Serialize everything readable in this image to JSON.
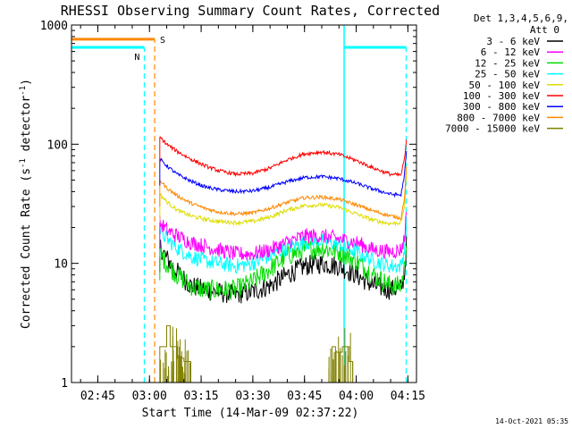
{
  "chart_data": {
    "type": "line",
    "title": "RHESSI Observing Summary Count Rates, Corrected",
    "xlabel": "Start Time (14-Mar-09 02:37:22)",
    "ylabel": "Corrected Count Rate (s⁻¹ detector⁻¹)",
    "ylabel_main": "Corrected Count Rate (s",
    "ylabel_sup1": "-1",
    "ylabel_mid": " detector",
    "ylabel_sup2": "-1",
    "ylabel_end": ")",
    "yscale": "log",
    "ylim": [
      1,
      1000
    ],
    "xlim": [
      "02:37:22",
      "04:17:30"
    ],
    "x_ticks": [
      "02:45",
      "03:00",
      "03:15",
      "03:30",
      "03:45",
      "04:00",
      "04:15"
    ],
    "y_ticks": [
      "1",
      "10",
      "100",
      "1000"
    ],
    "timestamp": "14-Oct-2021 05:35",
    "legend": {
      "position": "top-right",
      "header_line1": "Det 1,3,4,5,6,9,",
      "header_line2": "Att 0",
      "entries": [
        {
          "label": "3 - 6 keV",
          "color": "#000000"
        },
        {
          "label": "6 - 12 keV",
          "color": "#ff00ff"
        },
        {
          "label": "12 - 25 keV",
          "color": "#00dd00"
        },
        {
          "label": "25 - 50 keV",
          "color": "#00ffff"
        },
        {
          "label": "50 - 100 keV",
          "color": "#dddd00"
        },
        {
          "label": "100 - 300 keV",
          "color": "#ff0000"
        },
        {
          "label": "300 - 800 keV",
          "color": "#0000ff"
        },
        {
          "label": "800 - 7000 keV",
          "color": "#ff8800"
        },
        {
          "label": "7000 - 15000 keV",
          "color": "#808000"
        }
      ]
    },
    "flags": [
      {
        "label": "N",
        "meaning": "night",
        "color": "#00ffff",
        "intervals": [
          [
            "02:37:22",
            "02:58:30"
          ],
          [
            "03:56:30",
            "04:14:30"
          ]
        ],
        "level": 650
      },
      {
        "label": "S",
        "meaning": "SAA",
        "color": "#ff8800",
        "intervals": [
          [
            "02:37:22",
            "03:01:30"
          ]
        ],
        "level": 760
      }
    ],
    "series": [
      {
        "name": "3 - 6 keV",
        "color": "#000000",
        "noise": 0.2,
        "points": [
          [
            "03:03:00",
            14
          ],
          [
            "03:05:00",
            11
          ],
          [
            "03:08:00",
            8.5
          ],
          [
            "03:12:00",
            6.5
          ],
          [
            "03:16:00",
            6
          ],
          [
            "03:20:00",
            5.7
          ],
          [
            "03:25:00",
            5.5
          ],
          [
            "03:30:00",
            5.8
          ],
          [
            "03:35:00",
            6.5
          ],
          [
            "03:40:00",
            8
          ],
          [
            "03:45:00",
            9.5
          ],
          [
            "03:50:00",
            10
          ],
          [
            "03:55:00",
            9.5
          ],
          [
            "04:00:00",
            8
          ],
          [
            "04:05:00",
            6.5
          ],
          [
            "04:10:00",
            6
          ],
          [
            "04:13:00",
            6.2
          ],
          [
            "04:14:00",
            8
          ],
          [
            "04:14:40",
            15
          ]
        ]
      },
      {
        "name": "6 - 12 keV",
        "color": "#ff00ff",
        "noise": 0.15,
        "points": [
          [
            "03:03:00",
            22
          ],
          [
            "03:05:00",
            19
          ],
          [
            "03:08:00",
            17
          ],
          [
            "03:12:00",
            15
          ],
          [
            "03:16:00",
            14
          ],
          [
            "03:20:00",
            13
          ],
          [
            "03:25:00",
            12
          ],
          [
            "03:30:00",
            12
          ],
          [
            "03:35:00",
            13
          ],
          [
            "03:40:00",
            15
          ],
          [
            "03:45:00",
            17
          ],
          [
            "03:50:00",
            17
          ],
          [
            "03:55:00",
            16
          ],
          [
            "04:00:00",
            15
          ],
          [
            "04:05:00",
            13
          ],
          [
            "04:10:00",
            12.5
          ],
          [
            "04:13:00",
            13
          ],
          [
            "04:14:00",
            16
          ],
          [
            "04:14:40",
            30
          ]
        ]
      },
      {
        "name": "12 - 25 keV",
        "color": "#00dd00",
        "noise": 0.2,
        "points": [
          [
            "03:03:00",
            12
          ],
          [
            "03:05:00",
            10
          ],
          [
            "03:08:00",
            8
          ],
          [
            "03:12:00",
            6.5
          ],
          [
            "03:16:00",
            6
          ],
          [
            "03:20:00",
            6
          ],
          [
            "03:25:00",
            6
          ],
          [
            "03:30:00",
            7
          ],
          [
            "03:35:00",
            9
          ],
          [
            "03:40:00",
            11.5
          ],
          [
            "03:45:00",
            13
          ],
          [
            "03:50:00",
            13.5
          ],
          [
            "03:55:00",
            12.5
          ],
          [
            "04:00:00",
            10.5
          ],
          [
            "04:05:00",
            8
          ],
          [
            "04:10:00",
            6.5
          ],
          [
            "04:13:00",
            6.5
          ],
          [
            "04:14:00",
            9
          ],
          [
            "04:14:40",
            18
          ]
        ]
      },
      {
        "name": "25 - 50 keV",
        "color": "#00ffff",
        "noise": 0.15,
        "points": [
          [
            "03:03:00",
            19
          ],
          [
            "03:05:00",
            16
          ],
          [
            "03:08:00",
            13.5
          ],
          [
            "03:12:00",
            11.5
          ],
          [
            "03:16:00",
            10.5
          ],
          [
            "03:20:00",
            10
          ],
          [
            "03:25:00",
            9.5
          ],
          [
            "03:30:00",
            10
          ],
          [
            "03:35:00",
            11.5
          ],
          [
            "03:40:00",
            13.5
          ],
          [
            "03:45:00",
            15
          ],
          [
            "03:50:00",
            15.5
          ],
          [
            "03:55:00",
            14.5
          ],
          [
            "04:00:00",
            12.5
          ],
          [
            "04:05:00",
            10.5
          ],
          [
            "04:10:00",
            9.5
          ],
          [
            "04:13:00",
            9.5
          ],
          [
            "04:14:00",
            13
          ],
          [
            "04:14:40",
            25
          ]
        ]
      },
      {
        "name": "50 - 100 keV",
        "color": "#dddd00",
        "noise": 0.04,
        "points": [
          [
            "03:03:00",
            38
          ],
          [
            "03:05:00",
            33
          ],
          [
            "03:08:00",
            28
          ],
          [
            "03:12:00",
            25
          ],
          [
            "03:16:00",
            23.5
          ],
          [
            "03:20:00",
            22.5
          ],
          [
            "03:25:00",
            22
          ],
          [
            "03:30:00",
            22.5
          ],
          [
            "03:35:00",
            24.5
          ],
          [
            "03:40:00",
            28
          ],
          [
            "03:45:00",
            30.5
          ],
          [
            "03:50:00",
            31
          ],
          [
            "03:55:00",
            29.5
          ],
          [
            "04:00:00",
            26
          ],
          [
            "04:05:00",
            23
          ],
          [
            "04:10:00",
            21.5
          ],
          [
            "04:13:00",
            22
          ],
          [
            "04:14:00",
            30
          ],
          [
            "04:14:40",
            60
          ]
        ]
      },
      {
        "name": "100 - 300 keV",
        "color": "#ff0000",
        "noise": 0.035,
        "points": [
          [
            "03:03:00",
            115
          ],
          [
            "03:05:00",
            100
          ],
          [
            "03:08:00",
            87
          ],
          [
            "03:12:00",
            75
          ],
          [
            "03:16:00",
            66
          ],
          [
            "03:20:00",
            60
          ],
          [
            "03:25:00",
            56
          ],
          [
            "03:30:00",
            57
          ],
          [
            "03:35:00",
            63
          ],
          [
            "03:40:00",
            74
          ],
          [
            "03:45:00",
            83
          ],
          [
            "03:50:00",
            86
          ],
          [
            "03:55:00",
            82
          ],
          [
            "04:00:00",
            73
          ],
          [
            "04:05:00",
            63
          ],
          [
            "04:10:00",
            56
          ],
          [
            "04:13:00",
            55
          ],
          [
            "04:14:00",
            75
          ],
          [
            "04:14:40",
            110
          ]
        ]
      },
      {
        "name": "300 - 800 keV",
        "color": "#0000ff",
        "noise": 0.035,
        "points": [
          [
            "03:03:00",
            75
          ],
          [
            "03:05:00",
            66
          ],
          [
            "03:08:00",
            56
          ],
          [
            "03:12:00",
            49
          ],
          [
            "03:16:00",
            44
          ],
          [
            "03:20:00",
            41.5
          ],
          [
            "03:25:00",
            40
          ],
          [
            "03:30:00",
            40.5
          ],
          [
            "03:35:00",
            43.5
          ],
          [
            "03:40:00",
            48.5
          ],
          [
            "03:45:00",
            52.5
          ],
          [
            "03:50:00",
            53.5
          ],
          [
            "03:55:00",
            51.5
          ],
          [
            "04:00:00",
            47
          ],
          [
            "04:05:00",
            42
          ],
          [
            "04:10:00",
            38
          ],
          [
            "04:13:00",
            37.5
          ],
          [
            "04:14:00",
            55
          ],
          [
            "04:14:40",
            90
          ]
        ]
      },
      {
        "name": "800 - 7000 keV",
        "color": "#ff8800",
        "noise": 0.035,
        "points": [
          [
            "03:03:00",
            50
          ],
          [
            "03:05:00",
            43
          ],
          [
            "03:08:00",
            37
          ],
          [
            "03:12:00",
            32
          ],
          [
            "03:16:00",
            29
          ],
          [
            "03:20:00",
            27
          ],
          [
            "03:25:00",
            26
          ],
          [
            "03:30:00",
            26.5
          ],
          [
            "03:35:00",
            29
          ],
          [
            "03:40:00",
            32.5
          ],
          [
            "03:45:00",
            35.5
          ],
          [
            "03:50:00",
            36
          ],
          [
            "03:55:00",
            34.5
          ],
          [
            "04:00:00",
            31
          ],
          [
            "04:05:00",
            27.5
          ],
          [
            "04:10:00",
            25
          ],
          [
            "04:13:00",
            24
          ],
          [
            "04:14:00",
            35
          ],
          [
            "04:14:40",
            70
          ]
        ]
      },
      {
        "name": "7000 - 15000 keV",
        "color": "#808000",
        "noise": 0,
        "points": [
          [
            "03:03:00",
            2
          ],
          [
            "03:05:00",
            3
          ],
          [
            "03:06:00",
            2
          ],
          [
            "03:08:00",
            1.6
          ],
          [
            "03:10:00",
            1.5
          ],
          [
            "03:12:00",
            1
          ],
          [
            "03:52:00",
            1
          ],
          [
            "03:53:00",
            2
          ],
          [
            "03:54:00",
            1.8
          ],
          [
            "03:56:00",
            2
          ],
          [
            "03:58:00",
            1.5
          ],
          [
            "03:59:00",
            1
          ]
        ]
      }
    ]
  }
}
